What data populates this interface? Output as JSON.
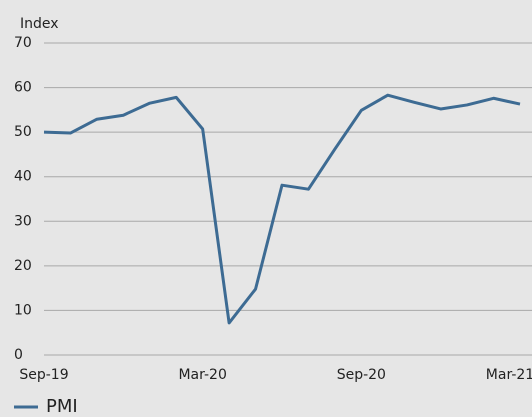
{
  "chart_data": {
    "type": "line",
    "y_label": "Index",
    "categories": [
      "Sep-19",
      null,
      null,
      null,
      null,
      null,
      "Mar-20",
      null,
      null,
      null,
      null,
      null,
      "Sep-20",
      null,
      null,
      null,
      null,
      null,
      "Mar-21"
    ],
    "series": [
      {
        "name": "PMI",
        "color": "#3d6b93",
        "values": [
          50.0,
          49.8,
          52.9,
          53.8,
          56.5,
          57.8,
          50.7,
          7.2,
          14.8,
          38.1,
          37.2,
          46.2,
          54.9,
          58.3,
          56.7,
          55.2,
          56.1,
          57.6,
          56.3
        ]
      }
    ],
    "ylim": [
      0,
      70
    ],
    "yticks": [
      0,
      10,
      20,
      30,
      40,
      50,
      60,
      70
    ],
    "grid": true,
    "legend": "bottom-left"
  }
}
